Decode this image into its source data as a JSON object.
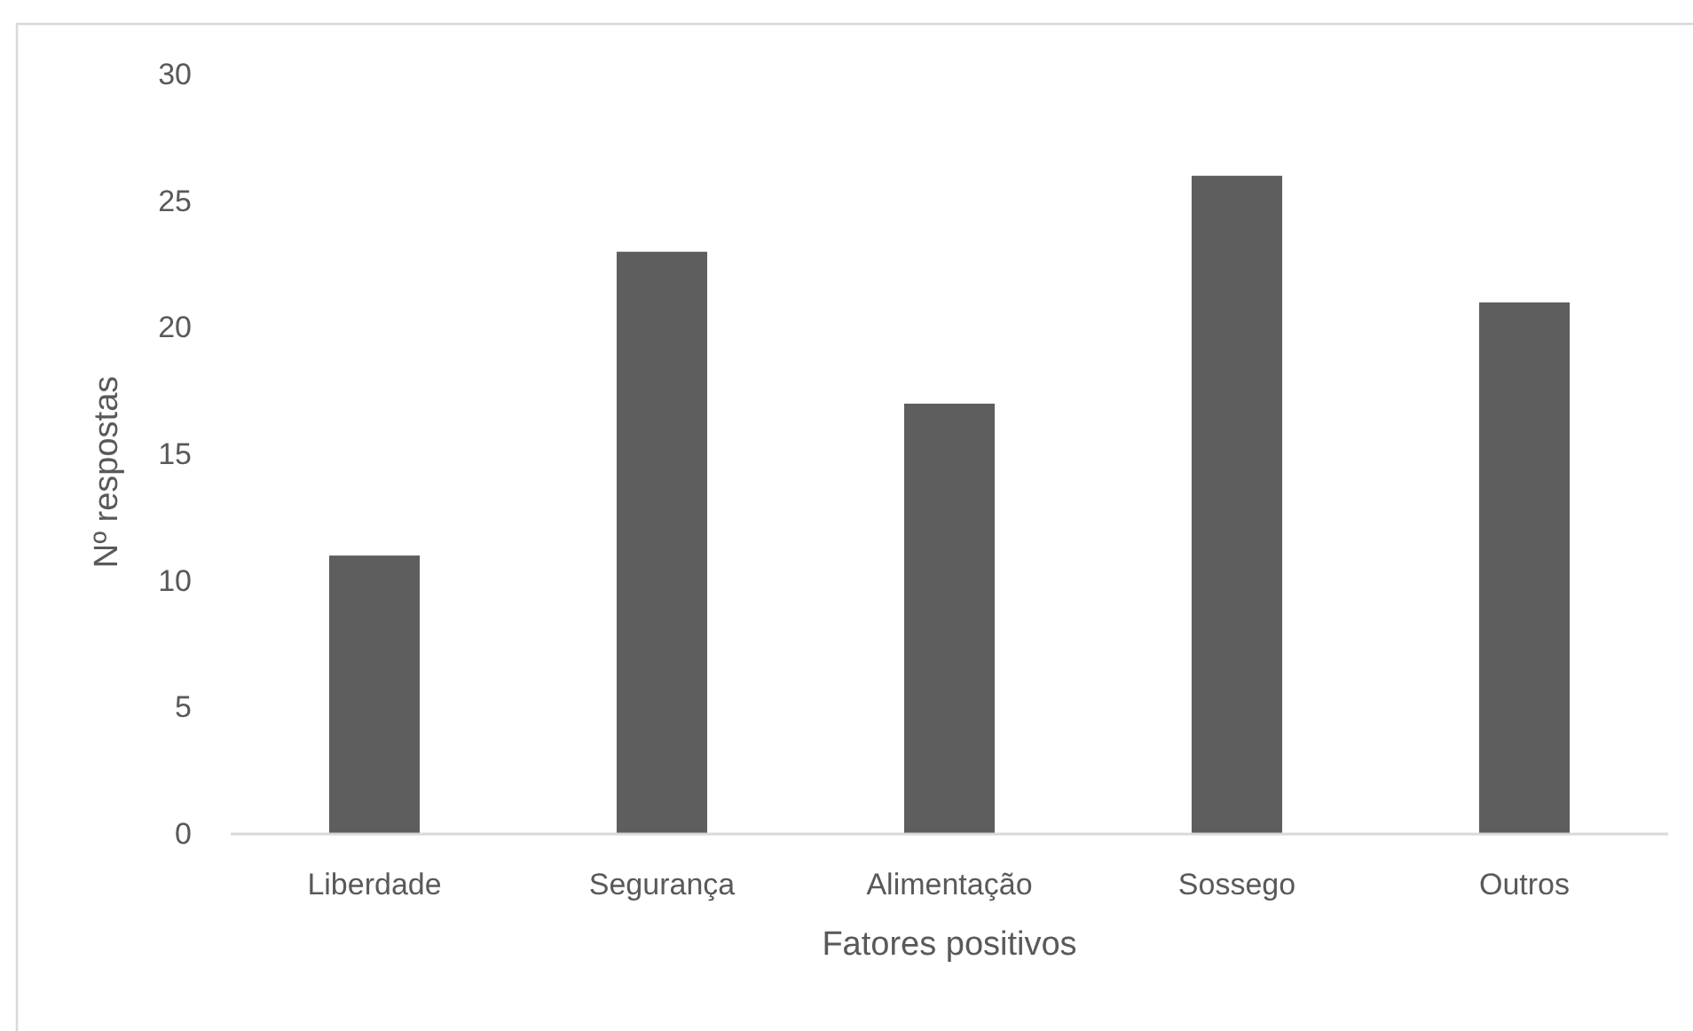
{
  "chart_data": {
    "type": "bar",
    "xlabel": "Fatores positivos",
    "ylabel": "Nº respostas",
    "categories": [
      "Liberdade",
      "Segurança",
      "Alimentação",
      "Sossego",
      "Outros"
    ],
    "values": [
      11,
      23,
      17,
      26,
      21
    ],
    "color": "#5e5e5e",
    "ylim": [
      0,
      30
    ],
    "yticks": [
      0,
      5,
      10,
      15,
      20,
      25,
      30
    ]
  }
}
